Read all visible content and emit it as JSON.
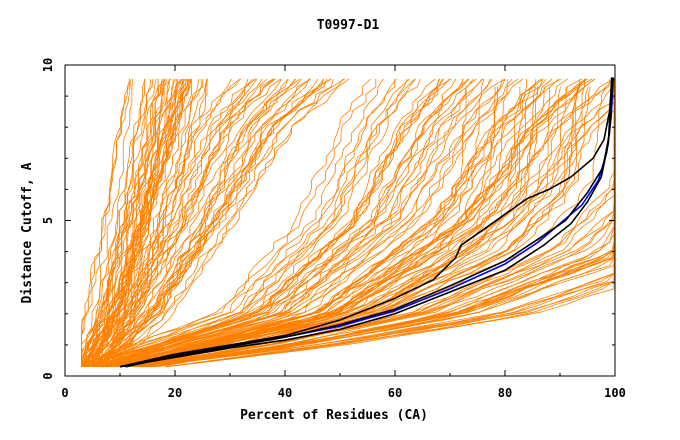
{
  "chart_data": {
    "type": "line",
    "title": "T0997-D1",
    "xlabel": "Percent of Residues (CA)",
    "ylabel": "Distance Cutoff, A",
    "xlim": [
      0,
      100
    ],
    "ylim": [
      0,
      10
    ],
    "x_ticks": [
      "0",
      "20",
      "40",
      "60",
      "80",
      "100"
    ],
    "y_ticks": [
      "0",
      "5",
      "10"
    ],
    "grid": false,
    "colors": {
      "background_models": "#ff8000",
      "highlight_black": "#000000",
      "highlight_blue": "#0000ff"
    },
    "series_groups": [
      {
        "group": "background models (orange), approx. y at given x",
        "color": "#ff8000",
        "families": [
          {
            "family": "steep",
            "x_at_y": [
              [
                0.3,
                4
              ],
              [
                2,
                8
              ],
              [
                5,
                12
              ],
              [
                8,
                16
              ],
              [
                9.6,
                18
              ]
            ]
          },
          {
            "family": "steep-wide",
            "x_at_y": [
              [
                0.3,
                5
              ],
              [
                2,
                13
              ],
              [
                5,
                22
              ],
              [
                8,
                30
              ],
              [
                9.6,
                38
              ]
            ]
          },
          {
            "family": "middle",
            "x_at_y": [
              [
                0.3,
                7
              ],
              [
                1,
                20
              ],
              [
                2,
                40
              ],
              [
                5,
                60
              ],
              [
                8,
                70
              ],
              [
                9.6,
                78
              ]
            ]
          },
          {
            "family": "good",
            "x_at_y": [
              [
                0.3,
                12
              ],
              [
                1,
                35
              ],
              [
                2,
                60
              ],
              [
                4,
                85
              ],
              [
                6,
                96
              ],
              [
                9.6,
                99
              ]
            ]
          }
        ]
      }
    ],
    "series": [
      {
        "color": "#000000",
        "x": [
          10,
          20,
          30,
          40,
          50,
          60,
          67,
          71,
          72,
          76,
          80,
          84,
          88,
          92,
          96,
          98,
          99,
          99.5
        ],
        "y": [
          0.3,
          0.7,
          1.0,
          1.3,
          1.8,
          2.5,
          3.1,
          3.8,
          4.2,
          4.7,
          5.2,
          5.7,
          6.0,
          6.4,
          7.0,
          7.6,
          8.5,
          9.6
        ]
      },
      {
        "color": "#0000ff",
        "x": [
          11,
          20,
          30,
          40,
          50,
          60,
          70,
          80,
          86,
          90,
          94,
          97,
          98.5,
          99.3,
          99.7
        ],
        "y": [
          0.3,
          0.65,
          0.95,
          1.25,
          1.6,
          2.1,
          2.8,
          3.6,
          4.3,
          4.9,
          5.5,
          6.3,
          7.2,
          8.3,
          9.6
        ]
      },
      {
        "color": "#000000",
        "x": [
          10,
          20,
          30,
          40,
          50,
          60,
          70,
          80,
          87,
          92,
          95,
          97.5,
          98.8,
          99.4
        ],
        "y": [
          0.3,
          0.6,
          0.9,
          1.15,
          1.5,
          2.0,
          2.7,
          3.4,
          4.2,
          4.9,
          5.6,
          6.4,
          7.5,
          9.6
        ]
      },
      {
        "color": "#000000",
        "x": [
          11,
          20,
          30,
          40,
          50,
          60,
          70,
          80,
          86,
          91,
          95,
          97.8,
          99,
          99.6
        ],
        "y": [
          0.3,
          0.65,
          0.95,
          1.25,
          1.65,
          2.15,
          2.9,
          3.7,
          4.4,
          5.0,
          5.9,
          6.7,
          7.8,
          9.6
        ]
      }
    ]
  }
}
